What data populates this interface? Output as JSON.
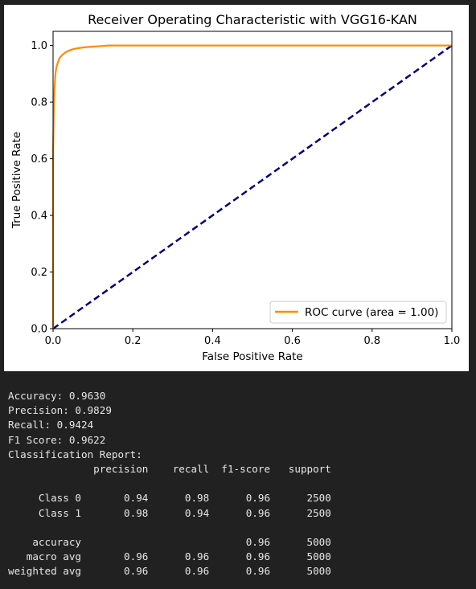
{
  "chart_data": {
    "type": "line",
    "title": "Receiver Operating Characteristic with VGG16-KAN",
    "xlabel": "False Positive Rate",
    "ylabel": "True Positive Rate",
    "xlim": [
      0.0,
      1.0
    ],
    "ylim": [
      0.0,
      1.05
    ],
    "xticks": [
      0.0,
      0.2,
      0.4,
      0.6,
      0.8,
      1.0
    ],
    "yticks": [
      0.0,
      0.2,
      0.4,
      0.6,
      0.8,
      1.0
    ],
    "xtick_labels": [
      "0.0",
      "0.2",
      "0.4",
      "0.6",
      "0.8",
      "1.0"
    ],
    "ytick_labels": [
      "0.0",
      "0.2",
      "0.4",
      "0.6",
      "0.8",
      "1.0"
    ],
    "grid": false,
    "legend_position": "lower-right",
    "series": [
      {
        "name": "ROC curve (area = 1.00)",
        "color": "#ff8c00",
        "style": "solid",
        "x": [
          0.0,
          0.0,
          0.002,
          0.004,
          0.006,
          0.008,
          0.012,
          0.016,
          0.022,
          0.03,
          0.04,
          0.05,
          0.06,
          0.08,
          0.1,
          0.12,
          0.14,
          0.2,
          0.4,
          0.6,
          0.8,
          1.0
        ],
        "y": [
          0.0,
          0.62,
          0.79,
          0.86,
          0.9,
          0.92,
          0.94,
          0.955,
          0.965,
          0.975,
          0.982,
          0.987,
          0.99,
          0.994,
          0.996,
          0.998,
          1.0,
          1.0,
          1.0,
          1.0,
          1.0,
          1.0
        ]
      },
      {
        "name": "",
        "color": "#000080",
        "style": "dashed",
        "x": [
          0.0,
          1.0
        ],
        "y": [
          0.0,
          1.0
        ]
      }
    ],
    "legend_entries": [
      "ROC curve (area = 1.00)"
    ]
  },
  "output": {
    "lines": [
      "Accuracy: 0.9630",
      "Precision: 0.9829",
      "Recall: 0.9424",
      "F1 Score: 0.9622",
      "Classification Report:",
      "              precision    recall  f1-score   support",
      "",
      "     Class 0       0.94      0.98      0.96      2500",
      "     Class 1       0.98      0.94      0.96      2500",
      "",
      "    accuracy                           0.96      5000",
      "   macro avg       0.96      0.96      0.96      5000",
      "weighted avg       0.96      0.96      0.96      5000"
    ]
  }
}
